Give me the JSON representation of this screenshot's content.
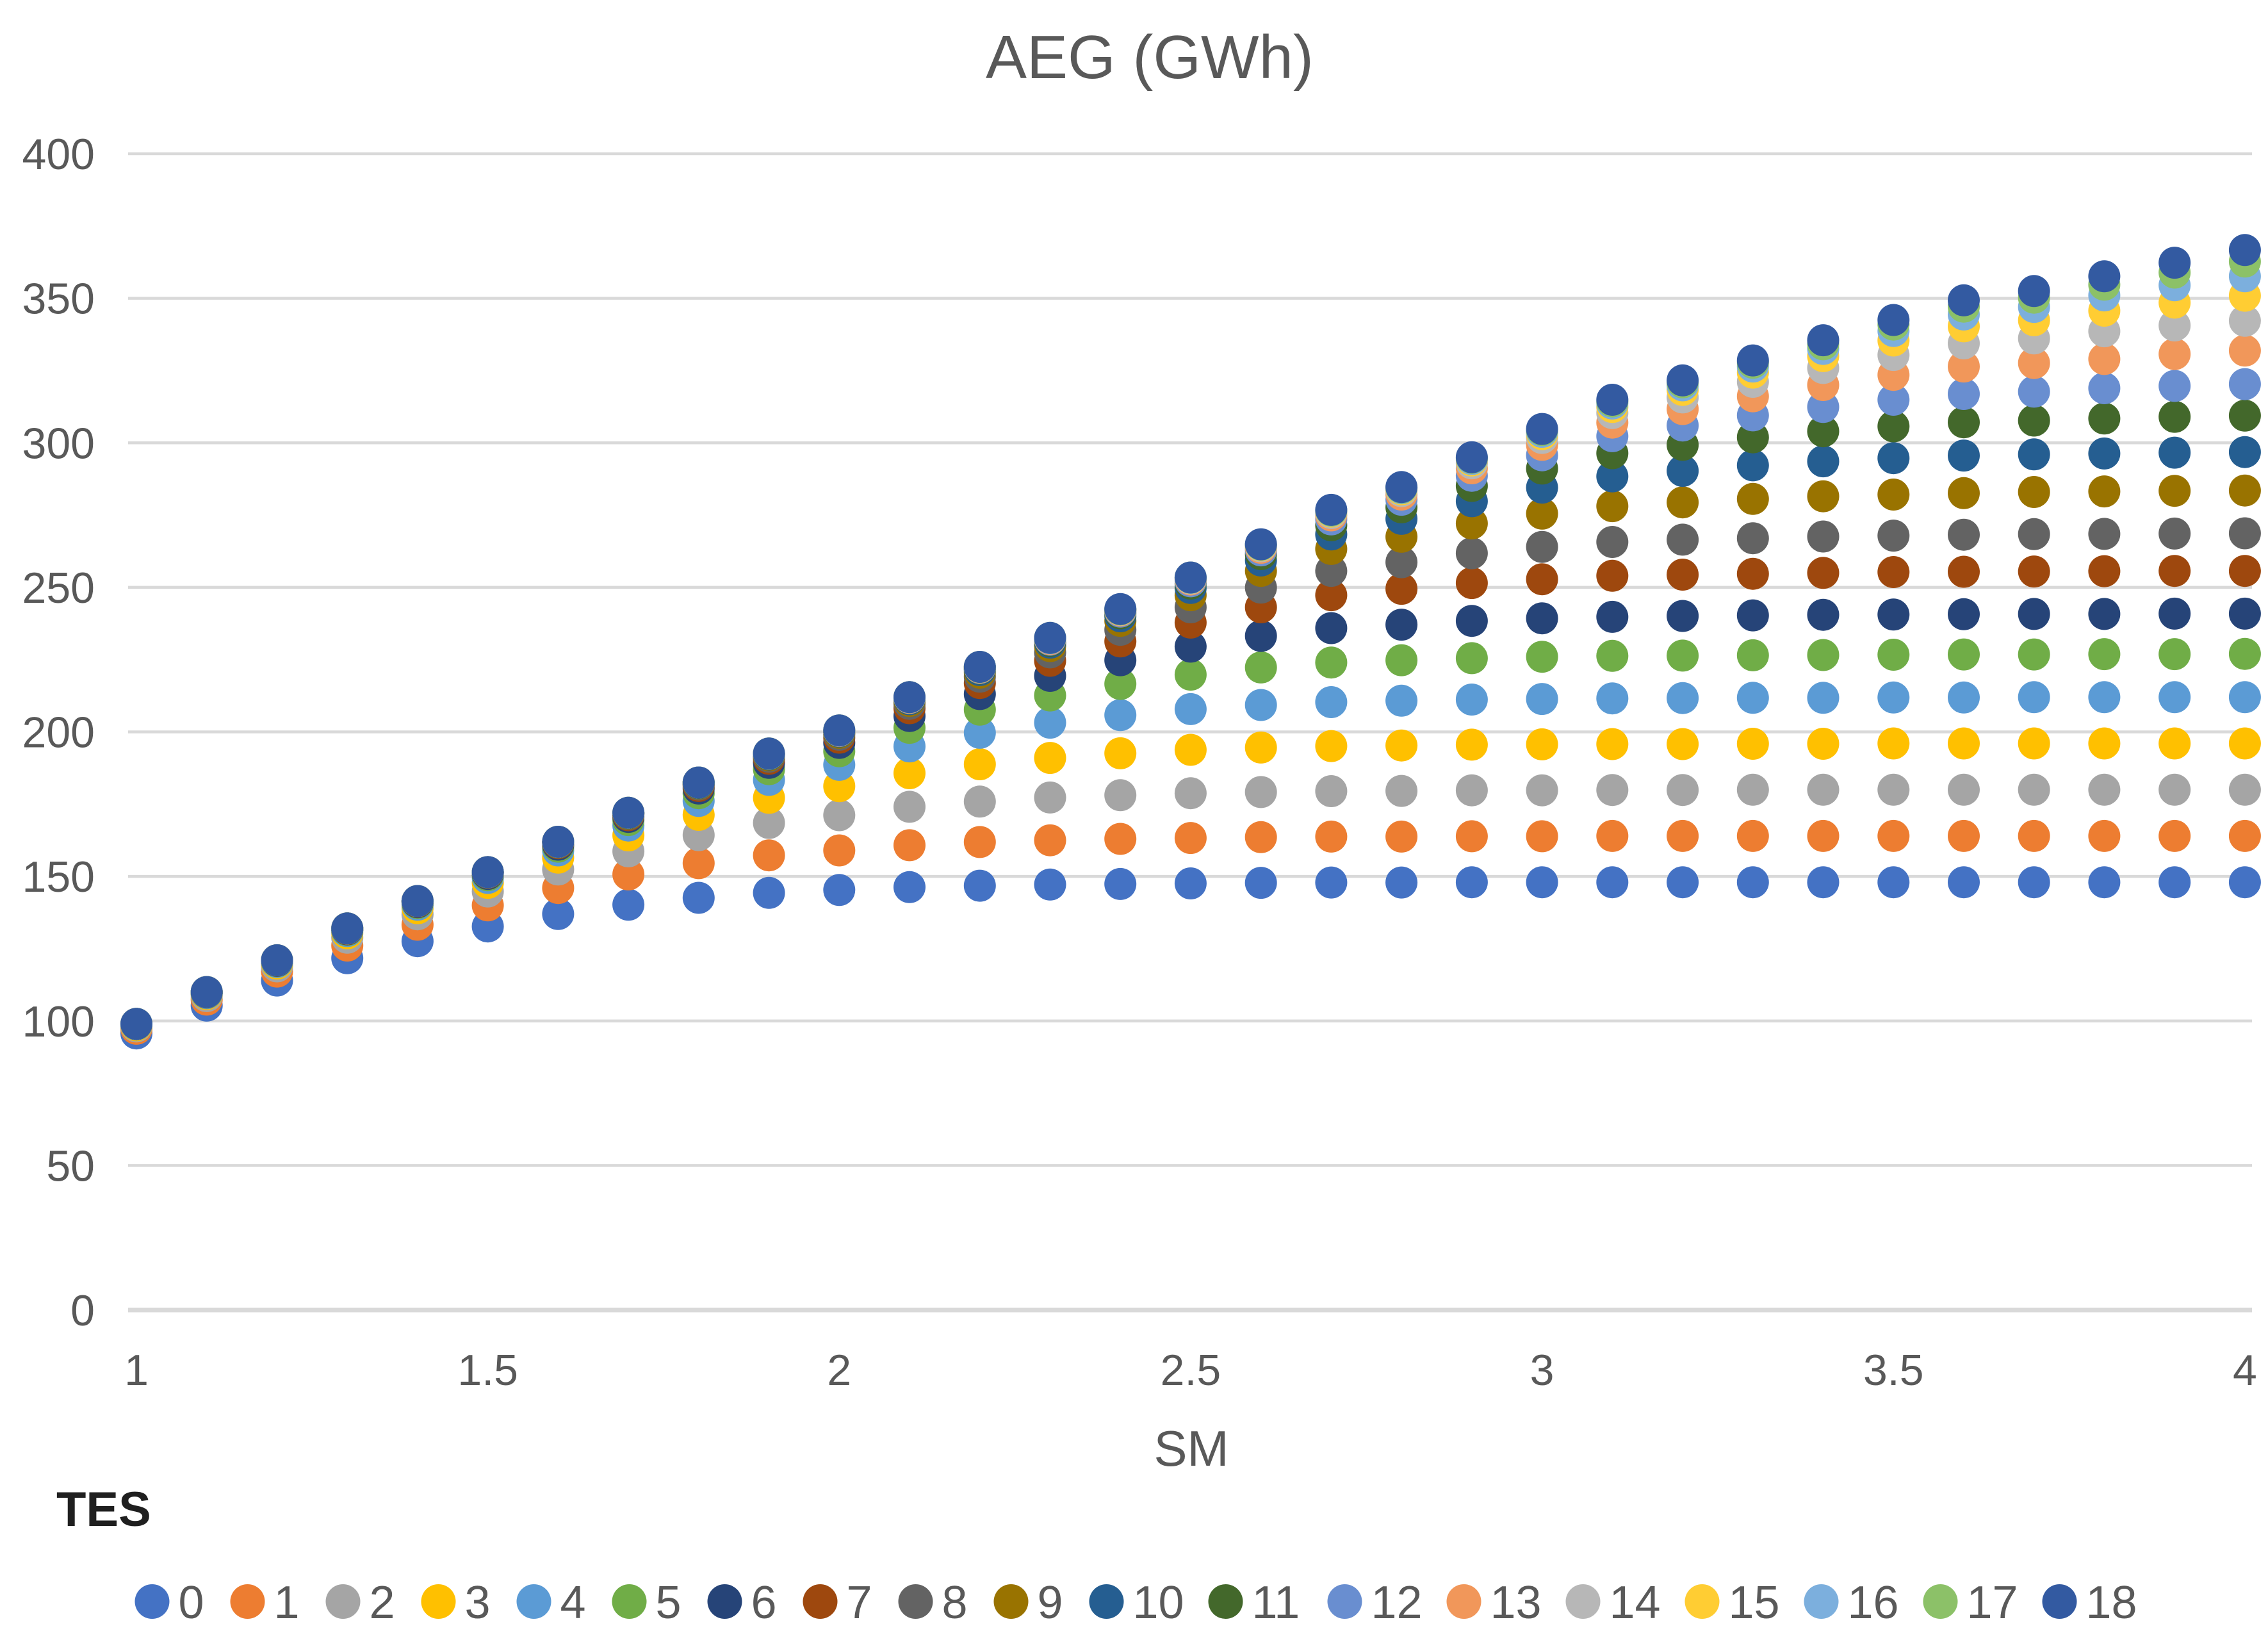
{
  "chart_data": {
    "type": "scatter",
    "title": "AEG (GWh)",
    "xlabel": "SM",
    "ylabel": "",
    "legend_title": "TES",
    "legend_position": "bottom",
    "grid": true,
    "xlim": [
      1,
      4
    ],
    "ylim": [
      0,
      400
    ],
    "x_ticks": [
      "1",
      "1.5",
      "2",
      "2.5",
      "3",
      "3.5",
      "4"
    ],
    "y_ticks": [
      0,
      50,
      100,
      150,
      200,
      250,
      300,
      350,
      400
    ],
    "grid_color": "#D9D9D9",
    "text_color": "#595959",
    "x": [
      1.0,
      1.1,
      1.2,
      1.3,
      1.4,
      1.5,
      1.6,
      1.7,
      1.8,
      1.9,
      2.0,
      2.1,
      2.2,
      2.3,
      2.4,
      2.5,
      2.6,
      2.7,
      2.8,
      2.9,
      3.0,
      3.1,
      3.2,
      3.3,
      3.4,
      3.5,
      3.6,
      3.7,
      3.8,
      3.9,
      4.0
    ],
    "series": [
      {
        "name": "0",
        "color": "#4472C4",
        "values": [
          95.7,
          105.3,
          114.0,
          121.7,
          127.6,
          132.7,
          137.0,
          140.2,
          142.6,
          144.3,
          145.3,
          146.3,
          146.8,
          147.2,
          147.4,
          147.6,
          147.8,
          147.9,
          147.9,
          148.0,
          148.0,
          148.0,
          148.0,
          148.0,
          148.0,
          148.0,
          148.0,
          148.0,
          148.0,
          148.0,
          148.0
        ]
      },
      {
        "name": "1",
        "color": "#ED7D31",
        "values": [
          97.3,
          107.4,
          117.1,
          126.1,
          133.3,
          140.0,
          146.0,
          150.7,
          154.6,
          157.3,
          159.0,
          160.8,
          161.9,
          162.5,
          163.0,
          163.3,
          163.6,
          163.8,
          163.8,
          163.9,
          163.9,
          164.0,
          164.0,
          164.0,
          164.0,
          164.0,
          164.0,
          164.0,
          164.0,
          164.0,
          164.0
        ]
      },
      {
        "name": "2",
        "color": "#A5A5A5",
        "values": [
          98.1,
          108.6,
          118.9,
          128.8,
          136.9,
          144.8,
          152.4,
          158.7,
          164.3,
          168.5,
          171.2,
          174.1,
          175.9,
          177.3,
          178.1,
          178.8,
          179.2,
          179.5,
          179.6,
          179.8,
          179.8,
          179.9,
          179.9,
          180.0,
          180.0,
          180.0,
          180.0,
          180.0,
          180.0,
          180.0,
          180.0
        ]
      },
      {
        "name": "3",
        "color": "#FFC000",
        "values": [
          98.5,
          109.3,
          119.9,
          130.3,
          139.0,
          147.8,
          156.5,
          164.2,
          171.3,
          177.2,
          181.2,
          185.7,
          188.8,
          191.0,
          192.6,
          193.8,
          194.6,
          195.1,
          195.3,
          195.6,
          195.7,
          195.8,
          195.8,
          195.9,
          195.9,
          196.0,
          196.0,
          196.0,
          196.0,
          196.0,
          196.0
        ]
      },
      {
        "name": "4",
        "color": "#5B9BD5",
        "values": [
          98.8,
          109.6,
          120.4,
          131.1,
          140.2,
          149.5,
          159.0,
          167.6,
          176.1,
          183.4,
          188.6,
          195.0,
          199.7,
          203.2,
          205.8,
          207.9,
          209.3,
          210.3,
          210.8,
          211.2,
          211.4,
          211.6,
          211.7,
          211.8,
          211.8,
          211.9,
          211.9,
          212.0,
          212.0,
          212.0,
          212.0
        ]
      },
      {
        "name": "5",
        "color": "#70AD47",
        "values": [
          98.9,
          109.8,
          120.7,
          131.5,
          140.8,
          150.4,
          160.3,
          169.5,
          178.8,
          187.1,
          193.3,
          201.4,
          207.7,
          212.6,
          216.6,
          219.8,
          222.3,
          224.0,
          224.8,
          225.5,
          226.0,
          226.3,
          226.4,
          226.5,
          226.6,
          226.7,
          226.8,
          226.8,
          226.9,
          226.9,
          227.0
        ]
      },
      {
        "name": "6",
        "color": "#264478",
        "values": [
          98.9,
          109.9,
          120.8,
          131.7,
          141.1,
          150.9,
          161.0,
          170.6,
          180.4,
          189.3,
          196.2,
          205.5,
          213.1,
          219.4,
          224.8,
          229.5,
          233.2,
          235.9,
          237.1,
          238.4,
          239.3,
          239.8,
          240.1,
          240.3,
          240.5,
          240.6,
          240.7,
          240.8,
          240.8,
          240.9,
          240.9
        ]
      },
      {
        "name": "7",
        "color": "#9E480E",
        "values": [
          99.0,
          109.9,
          120.9,
          131.8,
          141.3,
          151.2,
          161.5,
          171.2,
          181.3,
          190.7,
          198.0,
          208.2,
          216.9,
          224.6,
          231.3,
          237.8,
          243.1,
          247.3,
          249.5,
          251.5,
          252.8,
          254.0,
          254.4,
          254.7,
          255.0,
          255.3,
          255.4,
          255.5,
          255.6,
          255.7,
          255.7
        ]
      },
      {
        "name": "8",
        "color": "#636363",
        "values": [
          99.0,
          110.0,
          121.0,
          131.9,
          141.4,
          151.3,
          161.7,
          171.5,
          181.8,
          191.4,
          199.0,
          209.7,
          219.1,
          227.5,
          235.3,
          243.1,
          249.9,
          255.7,
          258.7,
          261.8,
          264.0,
          265.7,
          266.5,
          267.0,
          267.6,
          267.9,
          268.2,
          268.4,
          268.5,
          268.6,
          268.7
        ]
      },
      {
        "name": "9",
        "color": "#997300",
        "values": [
          99.0,
          110.0,
          121.0,
          132.0,
          141.4,
          151.4,
          161.8,
          171.7,
          182.1,
          191.9,
          199.7,
          210.7,
          220.5,
          229.7,
          238.4,
          247.3,
          255.7,
          263.3,
          267.5,
          272.1,
          275.5,
          278.1,
          279.4,
          280.6,
          281.5,
          282.1,
          282.6,
          283.0,
          283.2,
          283.4,
          283.5
        ]
      },
      {
        "name": "10",
        "color": "#255E91",
        "values": [
          99.0,
          110.0,
          121.0,
          132.0,
          141.5,
          151.4,
          161.9,
          171.9,
          182.3,
          192.2,
          200.1,
          211.3,
          221.4,
          230.9,
          240.0,
          249.8,
          259.3,
          268.3,
          273.7,
          279.8,
          284.5,
          288.4,
          290.3,
          292.2,
          293.6,
          294.7,
          295.6,
          296.0,
          296.3,
          296.6,
          296.8
        ]
      },
      {
        "name": "11",
        "color": "#43682B",
        "values": [
          99.0,
          110.0,
          121.0,
          132.0,
          141.5,
          151.5,
          162.0,
          171.9,
          182.4,
          192.3,
          200.2,
          211.6,
          221.9,
          231.5,
          241.0,
          251.3,
          261.5,
          271.5,
          277.7,
          285.1,
          291.1,
          296.4,
          299.3,
          301.9,
          304.0,
          305.7,
          307.1,
          307.7,
          308.4,
          309.0,
          309.4
        ]
      },
      {
        "name": "12",
        "color": "#698ED0",
        "values": [
          99.0,
          110.0,
          121.0,
          132.0,
          141.5,
          151.5,
          162.0,
          172.0,
          182.5,
          192.4,
          200.3,
          211.7,
          222.1,
          231.9,
          241.6,
          252.1,
          262.8,
          273.5,
          280.3,
          288.6,
          295.7,
          302.3,
          306.0,
          309.5,
          312.4,
          314.9,
          316.9,
          317.7,
          318.9,
          319.7,
          320.3
        ]
      },
      {
        "name": "13",
        "color": "#F1975A",
        "values": [
          99.0,
          110.0,
          121.0,
          132.0,
          141.5,
          151.5,
          162.0,
          172.0,
          182.5,
          192.5,
          200.4,
          211.8,
          222.3,
          232.1,
          242.0,
          252.7,
          263.7,
          274.9,
          282.1,
          291.2,
          299.3,
          307.0,
          311.7,
          316.1,
          320.0,
          323.5,
          326.4,
          327.6,
          329.0,
          330.7,
          331.9
        ]
      },
      {
        "name": "14",
        "color": "#B7B7B7",
        "values": [
          99.0,
          110.0,
          121.0,
          132.0,
          141.5,
          151.5,
          162.0,
          172.0,
          182.5,
          192.5,
          200.5,
          211.9,
          222.4,
          232.3,
          242.2,
          253.0,
          264.2,
          275.7,
          283.3,
          292.9,
          301.7,
          310.3,
          315.7,
          321.1,
          325.9,
          330.4,
          334.4,
          336.1,
          338.6,
          340.6,
          342.2
        ]
      },
      {
        "name": "15",
        "color": "#FFCD33",
        "values": [
          99.0,
          110.0,
          121.0,
          132.0,
          141.5,
          151.5,
          162.0,
          172.0,
          182.5,
          192.5,
          200.5,
          212.0,
          222.4,
          232.4,
          242.3,
          253.2,
          264.5,
          276.2,
          283.9,
          293.9,
          303.0,
          312.4,
          318.3,
          324.3,
          330.0,
          335.4,
          340.3,
          342.4,
          345.7,
          348.5,
          350.9
        ]
      },
      {
        "name": "16",
        "color": "#7CAFDD",
        "values": [
          99.0,
          110.0,
          121.0,
          132.0,
          141.5,
          151.5,
          162.0,
          172.0,
          182.5,
          192.5,
          200.5,
          212.0,
          222.5,
          232.4,
          242.4,
          253.3,
          264.7,
          276.5,
          284.3,
          294.4,
          303.8,
          313.6,
          319.9,
          326.4,
          332.5,
          338.7,
          344.4,
          347.0,
          351.0,
          354.5,
          357.6
        ]
      },
      {
        "name": "17",
        "color": "#8CC168",
        "values": [
          99.0,
          110.0,
          121.0,
          132.0,
          141.5,
          151.5,
          162.0,
          172.0,
          182.5,
          192.5,
          200.5,
          212.0,
          222.5,
          232.5,
          242.4,
          253.4,
          264.8,
          276.6,
          284.5,
          294.8,
          304.4,
          314.3,
          320.9,
          327.7,
          334.1,
          340.9,
          347.1,
          350.2,
          354.7,
          358.9,
          362.7
        ]
      },
      {
        "name": "18",
        "color": "#335AA1",
        "values": [
          99.0,
          110.0,
          121.0,
          132.0,
          141.5,
          151.5,
          162.0,
          172.0,
          182.5,
          192.5,
          200.5,
          212.0,
          222.5,
          232.5,
          242.5,
          253.4,
          264.9,
          276.8,
          284.7,
          295.0,
          304.8,
          314.9,
          321.6,
          328.5,
          335.5,
          342.5,
          349.3,
          352.5,
          357.6,
          362.3,
          366.7
        ]
      }
    ]
  }
}
